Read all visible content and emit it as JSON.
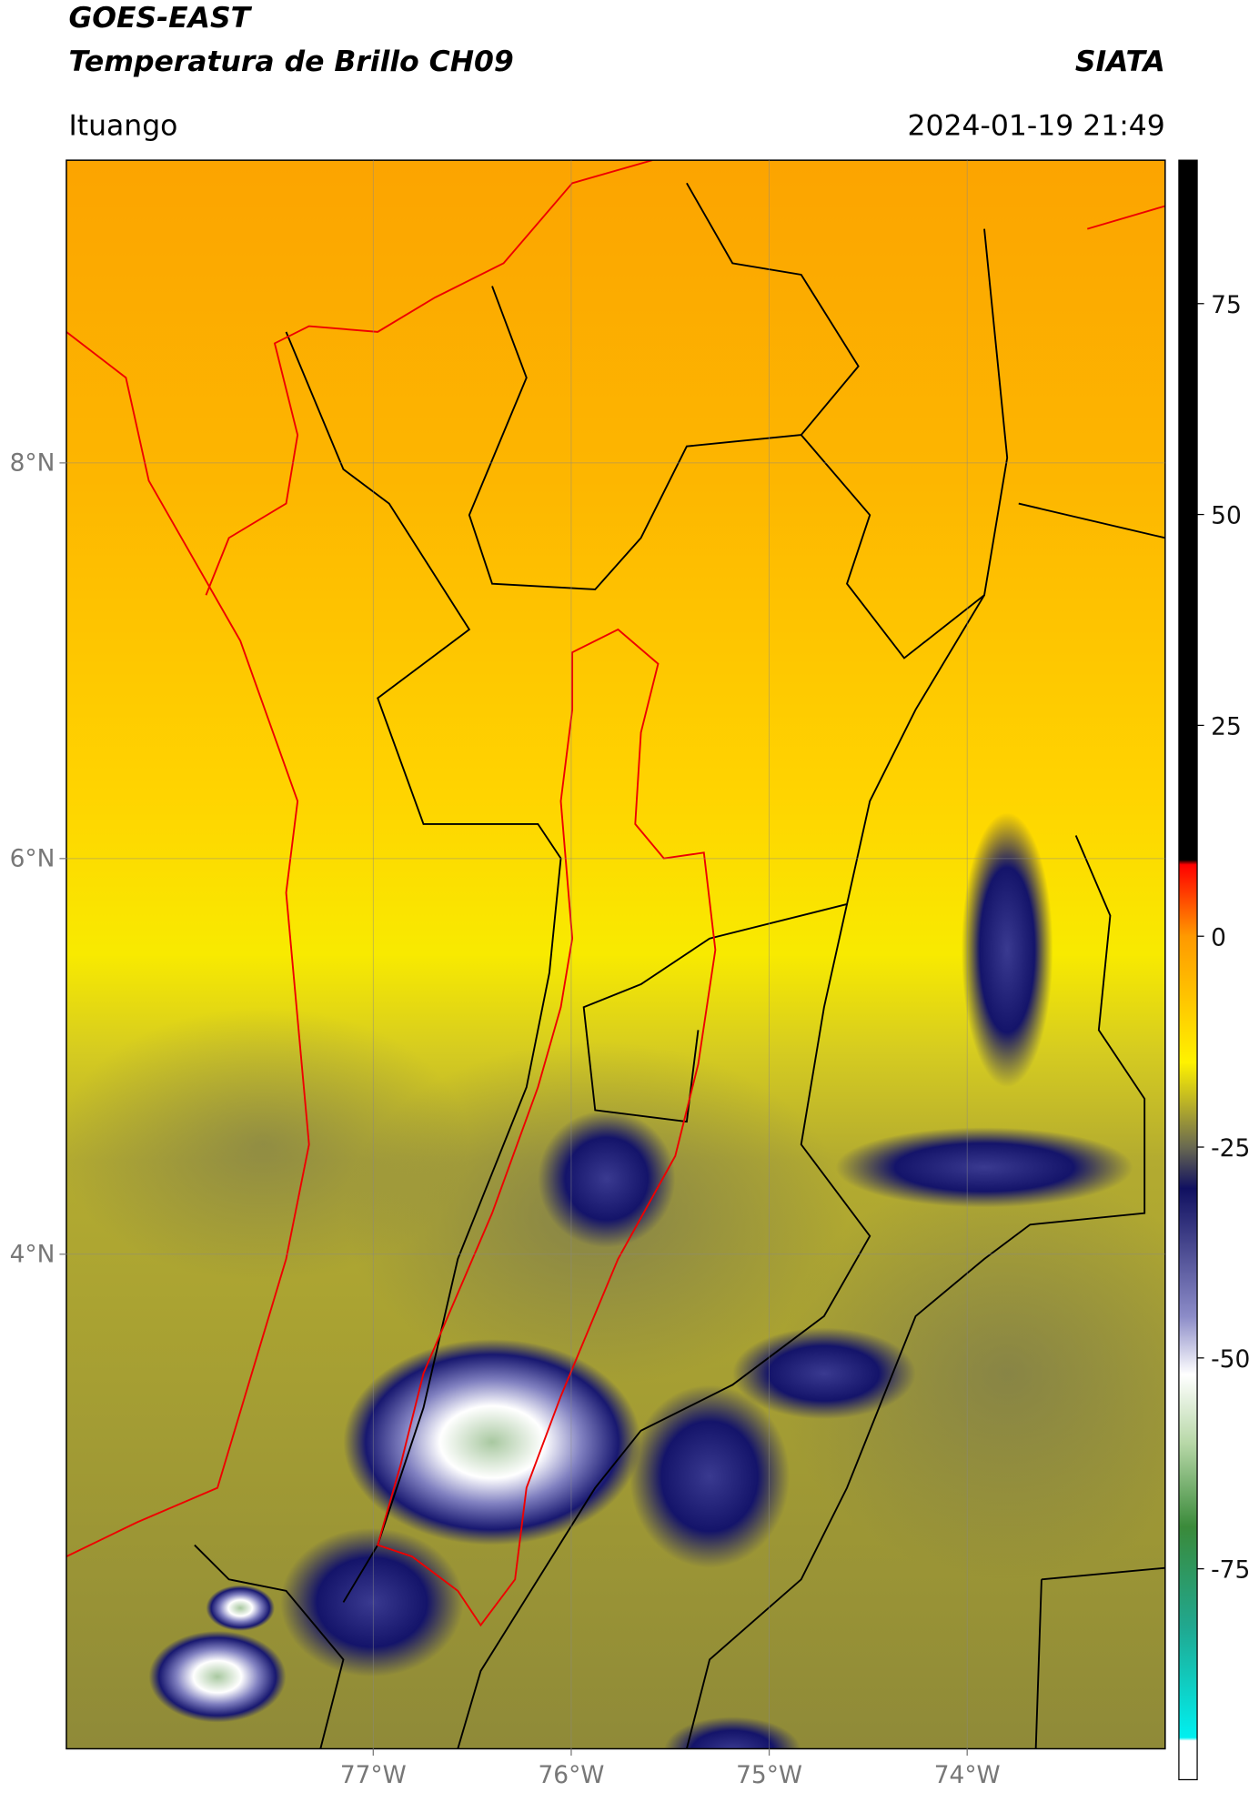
{
  "header": {
    "title": "GOES-EAST",
    "subtitle": "Temperatura de Brillo CH09",
    "org": "SIATA",
    "location": "Ituango",
    "datetime": "2024-01-19 21:49"
  },
  "map": {
    "xlim": [
      -78.55,
      -73.0
    ],
    "ylim": [
      1.5,
      9.53
    ],
    "xticks": [
      {
        "value": -77,
        "label": "77°W"
      },
      {
        "value": -76,
        "label": "76°W"
      },
      {
        "value": -75,
        "label": "75°W"
      },
      {
        "value": -74,
        "label": "74°W"
      }
    ],
    "yticks": [
      {
        "value": 4,
        "label": "4°N"
      },
      {
        "value": 6,
        "label": "6°N"
      },
      {
        "value": 8,
        "label": "8°N"
      }
    ],
    "grid": true
  },
  "colorbar": {
    "lim": [
      -100,
      92
    ],
    "ticks": [
      -75,
      -50,
      -25,
      0,
      25,
      50,
      75
    ]
  }
}
